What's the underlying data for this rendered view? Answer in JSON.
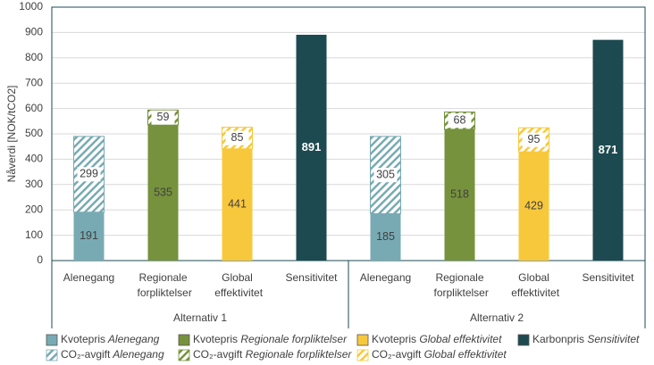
{
  "chart_data": {
    "type": "stacked-bar",
    "y_label": "Nåverdi [NOK/tCO2]",
    "groups": [
      {
        "name": "Alternativ 1",
        "categories": [
          "Alenegang",
          "Regionale forpliktelser",
          "Global effektivitet",
          "Sensitivitet"
        ]
      },
      {
        "name": "Alternativ 2",
        "categories": [
          "Alenegang",
          "Regionale forpliktelser",
          "Global effektivitet",
          "Sensitivitet"
        ]
      }
    ],
    "series": [
      {
        "name": "Kvotepris Alenegang",
        "color": "#78aab3",
        "hatch": false,
        "values": [
          191,
          null,
          null,
          null,
          185,
          null,
          null,
          null
        ]
      },
      {
        "name": "CO₂-avgift Alenegang",
        "color": "#78aab3",
        "hatch": true,
        "values": [
          299,
          null,
          null,
          null,
          305,
          null,
          null,
          null
        ]
      },
      {
        "name": "Kvotepris Regionale forpliktelser",
        "color": "#76923c",
        "hatch": false,
        "values": [
          null,
          535,
          null,
          null,
          null,
          518,
          null,
          null
        ]
      },
      {
        "name": "CO₂-avgift Regionale forpliktelser",
        "color": "#76923c",
        "hatch": true,
        "values": [
          null,
          59,
          null,
          null,
          null,
          68,
          null,
          null
        ]
      },
      {
        "name": "Kvotepris Global effektivitet",
        "color": "#f8c83c",
        "hatch": false,
        "values": [
          null,
          null,
          441,
          null,
          null,
          null,
          429,
          null
        ]
      },
      {
        "name": "CO₂-avgift Global effektivitet",
        "color": "#f8c83c",
        "hatch": true,
        "values": [
          null,
          null,
          85,
          null,
          null,
          null,
          95,
          null
        ]
      },
      {
        "name": "Karbonpris Sensitivitet",
        "color": "#1d4a50",
        "hatch": false,
        "values": [
          null,
          null,
          null,
          891,
          null,
          null,
          null,
          871
        ]
      }
    ],
    "ylim": [
      0,
      1000
    ],
    "yticks": [
      0,
      100,
      200,
      300,
      400,
      500,
      600,
      700,
      800,
      900,
      1000
    ],
    "grid": true
  }
}
